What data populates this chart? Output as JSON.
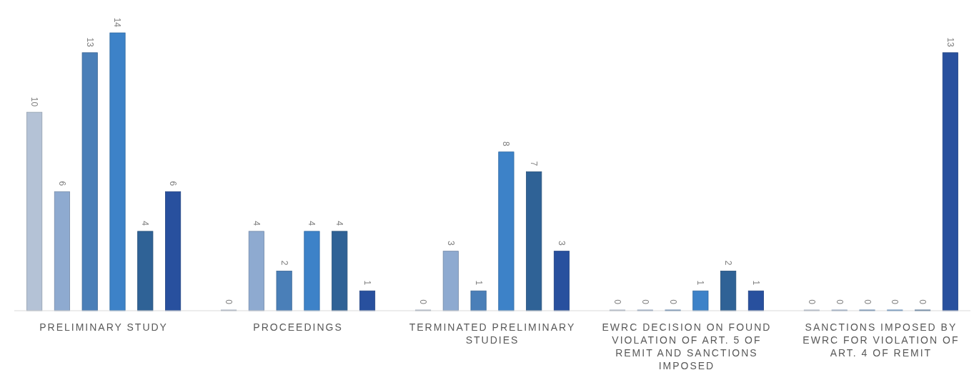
{
  "chart_data": {
    "type": "bar",
    "categories": [
      "PRELIMINARY STUDY",
      "PROCEEDINGS",
      "TERMINATED PRELIMINARY STUDIES",
      "EWRC DECISION ON FOUND VIOLATION OF ART. 5 OF REMIT AND SANCTIONS IMPOSED",
      "SANCTIONS IMPOSED BY EWRC FOR VIOLATION OF ART. 4 OF REMIT"
    ],
    "series": [
      {
        "color": "#b4c2d6",
        "values": [
          10,
          0,
          0,
          0,
          0
        ]
      },
      {
        "color": "#8eaad0",
        "values": [
          6,
          4,
          3,
          0,
          0
        ]
      },
      {
        "color": "#4a7fb8",
        "values": [
          13,
          2,
          1,
          0,
          0
        ]
      },
      {
        "color": "#3d82c8",
        "values": [
          14,
          4,
          8,
          1,
          0
        ]
      },
      {
        "color": "#2f6296",
        "values": [
          4,
          4,
          7,
          2,
          0
        ]
      },
      {
        "color": "#28509e",
        "values": [
          6,
          1,
          3,
          1,
          13
        ]
      }
    ],
    "data_labels": true
  }
}
